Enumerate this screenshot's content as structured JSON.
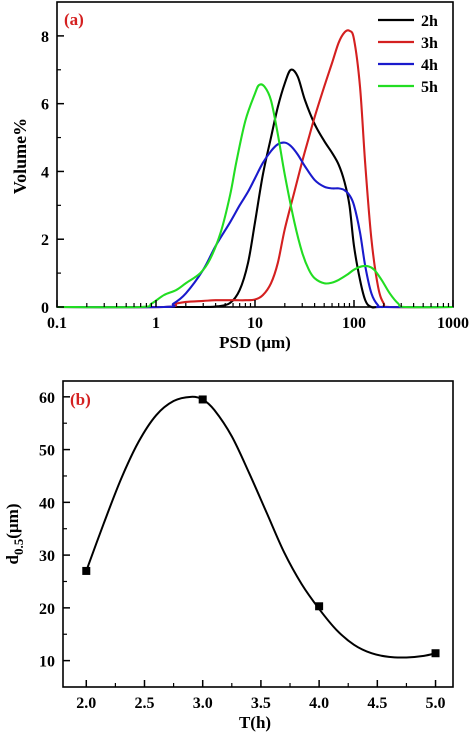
{
  "chart_data": [
    {
      "type": "line",
      "panel_label": "(a)",
      "panel_label_color": "#d42020",
      "xlabel": "PSD (µm)",
      "ylabel": "Volume%",
      "xscale": "log",
      "xlim": [
        0.1,
        1000
      ],
      "ylim": [
        0,
        9
      ],
      "xticks": [
        0.1,
        1,
        10,
        100,
        1000
      ],
      "xtick_labels": [
        "0.1",
        "1",
        "10",
        "100",
        "1000"
      ],
      "yticks": [
        0,
        2,
        4,
        6,
        8
      ],
      "ytick_labels": [
        "0",
        "2",
        "4",
        "6",
        "8"
      ],
      "legend_position": "top-right",
      "grid": false,
      "series": [
        {
          "name": "2h",
          "color": "#000000",
          "x": [
            0.1,
            1,
            3,
            4.2,
            5.6,
            7,
            8.5,
            10,
            12,
            14.5,
            17,
            20,
            23,
            27,
            32,
            40,
            50,
            60,
            70,
            80,
            90,
            100,
            115,
            130,
            150,
            200,
            1000
          ],
          "y": [
            0,
            0,
            0,
            0.02,
            0.12,
            0.5,
            1.3,
            2.5,
            3.9,
            5.0,
            5.9,
            6.6,
            7.0,
            6.8,
            6.1,
            5.4,
            4.9,
            4.55,
            4.2,
            3.7,
            3.0,
            1.8,
            0.8,
            0.2,
            0,
            0,
            0
          ]
        },
        {
          "name": "3h",
          "color": "#d42020",
          "x": [
            0.1,
            1.2,
            1.6,
            2,
            3,
            4,
            5,
            6.5,
            8,
            10,
            12,
            14.5,
            17,
            20,
            25,
            30,
            35,
            40,
            50,
            60,
            70,
            80,
            90,
            100,
            115,
            130,
            150,
            175,
            200,
            230,
            1000
          ],
          "y": [
            0,
            0,
            0.1,
            0.15,
            0.18,
            0.2,
            0.2,
            0.2,
            0.2,
            0.22,
            0.35,
            0.7,
            1.3,
            2.3,
            3.4,
            4.3,
            5.0,
            5.6,
            6.5,
            7.2,
            7.8,
            8.1,
            8.15,
            7.9,
            6.5,
            4.2,
            2.0,
            0.6,
            0.1,
            0,
            0
          ]
        },
        {
          "name": "4h",
          "color": "#1a1acc",
          "x": [
            0.1,
            1.2,
            1.5,
            2,
            3,
            4,
            5.6,
            7,
            8.5,
            10,
            12,
            14.5,
            17,
            20,
            23,
            27,
            32,
            40,
            50,
            60,
            70,
            80,
            90,
            100,
            115,
            130,
            150,
            175,
            200,
            1000
          ],
          "y": [
            0,
            0,
            0.1,
            0.4,
            1.1,
            1.8,
            2.5,
            3.0,
            3.4,
            3.8,
            4.25,
            4.6,
            4.8,
            4.85,
            4.75,
            4.5,
            4.15,
            3.75,
            3.55,
            3.5,
            3.5,
            3.45,
            3.3,
            3.0,
            2.2,
            1.2,
            0.4,
            0.05,
            0,
            0
          ]
        },
        {
          "name": "5h",
          "color": "#22dd22",
          "x": [
            0.1,
            0.7,
            0.9,
            1.2,
            1.6,
            2,
            2.8,
            3.5,
            4.5,
            5.6,
            6.5,
            8,
            10,
            11,
            12.5,
            14.5,
            17,
            20,
            25,
            30,
            35,
            40,
            50,
            60,
            70,
            85,
            100,
            120,
            140,
            160,
            190,
            230,
            280,
            330,
            1000
          ],
          "y": [
            0,
            0,
            0.1,
            0.35,
            0.5,
            0.7,
            1.0,
            1.4,
            2.2,
            3.3,
            4.3,
            5.5,
            6.3,
            6.55,
            6.5,
            6.1,
            5.1,
            3.9,
            2.5,
            1.6,
            1.1,
            0.85,
            0.7,
            0.72,
            0.8,
            0.95,
            1.1,
            1.2,
            1.2,
            1.1,
            0.8,
            0.4,
            0.1,
            0,
            0
          ]
        }
      ]
    },
    {
      "type": "line",
      "panel_label": "(b)",
      "panel_label_color": "#d42020",
      "xlabel": "T(h)",
      "ylabel": "d",
      "ylabel_sub": "0.5",
      "ylabel_suffix": "(µm)",
      "xlim": [
        1.8,
        5.15
      ],
      "ylim": [
        5,
        63
      ],
      "xticks": [
        2.0,
        2.5,
        3.0,
        3.5,
        4.0,
        4.5,
        5.0
      ],
      "xtick_labels": [
        "2.0",
        "2.5",
        "3.0",
        "3.5",
        "4.0",
        "4.5",
        "5.0"
      ],
      "yticks": [
        10,
        20,
        30,
        40,
        50,
        60
      ],
      "ytick_labels": [
        "10",
        "20",
        "30",
        "40",
        "50",
        "60"
      ],
      "grid": false,
      "points": {
        "x": [
          2.0,
          3.0,
          4.0,
          5.0
        ],
        "y": [
          27,
          59.5,
          20.3,
          11.4
        ]
      },
      "curve": {
        "x": [
          2.0,
          2.15,
          2.3,
          2.45,
          2.6,
          2.75,
          2.9,
          3.0,
          3.1,
          3.25,
          3.4,
          3.55,
          3.7,
          3.85,
          4.0,
          4.15,
          4.3,
          4.45,
          4.6,
          4.75,
          4.9,
          5.0
        ],
        "y": [
          27,
          36,
          44.5,
          51.5,
          56.5,
          59.2,
          60.0,
          59.5,
          57.5,
          52.5,
          45.5,
          38,
          30.5,
          24.5,
          19.8,
          15.8,
          13.0,
          11.4,
          10.7,
          10.6,
          10.9,
          11.4
        ]
      },
      "color": "#000000"
    }
  ]
}
